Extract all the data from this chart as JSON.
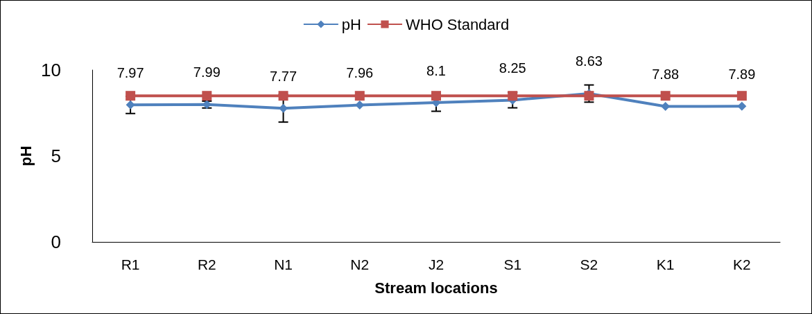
{
  "chart_data": {
    "type": "line",
    "xlabel": "Stream locations",
    "ylabel": "pH",
    "categories": [
      "R1",
      "R2",
      "N1",
      "N2",
      "J2",
      "S1",
      "S2",
      "K1",
      "K2"
    ],
    "series": [
      {
        "name": "pH",
        "color": "#4f81bd",
        "marker": "diamond",
        "values": [
          7.97,
          7.99,
          7.77,
          7.96,
          8.1,
          8.25,
          8.63,
          7.88,
          7.89
        ],
        "errors": [
          0.5,
          0.2,
          0.8,
          null,
          0.5,
          0.45,
          0.5,
          null,
          null
        ],
        "data_labels": true
      },
      {
        "name": "WHO Standard",
        "color": "#c0504d",
        "marker": "square",
        "values": [
          8.5,
          8.5,
          8.5,
          8.5,
          8.5,
          8.5,
          8.5,
          8.5,
          8.5
        ]
      }
    ],
    "ylim": [
      0,
      10
    ],
    "yticks": [
      0,
      5,
      10
    ],
    "grid": false,
    "legend": "top",
    "line_style": "solid"
  }
}
